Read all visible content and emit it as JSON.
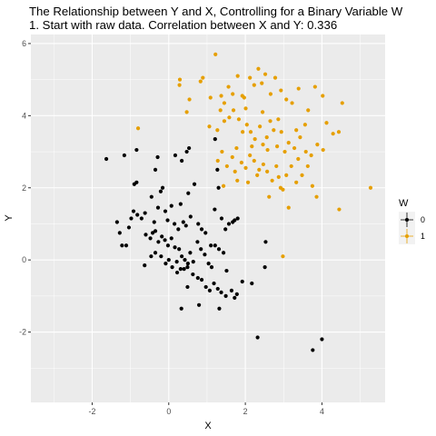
{
  "chart_data": {
    "type": "scatter",
    "title": "The Relationship between Y and X, Controlling for a Binary Variable W",
    "subtitle": "1. Start with raw data. Correlation between X and Y: 0.336",
    "xlabel": "X",
    "ylabel": "Y",
    "xlim": [
      -3.6,
      5.65
    ],
    "ylim": [
      -3.95,
      6.25
    ],
    "x_ticks": [
      -2,
      0,
      2,
      4
    ],
    "y_ticks": [
      -2,
      0,
      2,
      4,
      6
    ],
    "x_tick_labels": [
      "-2",
      "0",
      "2",
      "4"
    ],
    "y_tick_labels": [
      "-2",
      "0",
      "2",
      "4",
      "6"
    ],
    "grid": true,
    "legend": {
      "title": "W",
      "position": "right"
    },
    "series": [
      {
        "name": "0",
        "color": "#000000",
        "points": [
          [
            -1.63,
            2.8
          ],
          [
            -1.16,
            2.9
          ],
          [
            -0.84,
            3.05
          ],
          [
            -0.9,
            2.1
          ],
          [
            -0.84,
            2.15
          ],
          [
            -0.35,
            2.5
          ],
          [
            -0.29,
            2.85
          ],
          [
            0.17,
            2.9
          ],
          [
            0.34,
            2.75
          ],
          [
            0.47,
            3.0
          ],
          [
            0.53,
            3.1
          ],
          [
            1.21,
            3.35
          ],
          [
            1.27,
            2.5
          ],
          [
            1.3,
            2.0
          ],
          [
            -1.35,
            1.05
          ],
          [
            -1.28,
            0.75
          ],
          [
            -1.22,
            0.4
          ],
          [
            -1.11,
            0.4
          ],
          [
            -1.04,
            0.9
          ],
          [
            -0.98,
            1.15
          ],
          [
            -0.92,
            1.35
          ],
          [
            -0.82,
            1.25
          ],
          [
            -0.71,
            1.15
          ],
          [
            -0.62,
            1.3
          ],
          [
            -0.45,
            1.75
          ],
          [
            -0.38,
            1.05
          ],
          [
            -0.28,
            1.45
          ],
          [
            -0.21,
            1.9
          ],
          [
            -0.16,
            2.0
          ],
          [
            -0.09,
            1.35
          ],
          [
            -0.03,
            1.1
          ],
          [
            0.07,
            1.5
          ],
          [
            0.15,
            1.0
          ],
          [
            0.25,
            0.85
          ],
          [
            0.31,
            1.55
          ],
          [
            0.38,
            1.05
          ],
          [
            0.45,
            0.95
          ],
          [
            0.51,
            1.85
          ],
          [
            0.57,
            1.2
          ],
          [
            0.67,
            2.1
          ],
          [
            0.77,
            1.0
          ],
          [
            0.86,
            0.85
          ],
          [
            0.96,
            0.75
          ],
          [
            1.1,
            0.4
          ],
          [
            1.2,
            1.4
          ],
          [
            1.38,
            1.15
          ],
          [
            1.48,
            0.85
          ],
          [
            1.57,
            1.0
          ],
          [
            1.67,
            1.05
          ],
          [
            1.72,
            1.1
          ],
          [
            1.8,
            1.15
          ],
          [
            -0.6,
            0.7
          ],
          [
            -0.48,
            0.6
          ],
          [
            -0.42,
            0.75
          ],
          [
            -0.35,
            0.8
          ],
          [
            -0.27,
            0.5
          ],
          [
            -0.18,
            0.65
          ],
          [
            -0.1,
            0.55
          ],
          [
            -0.02,
            0.4
          ],
          [
            0.07,
            0.6
          ],
          [
            0.16,
            0.35
          ],
          [
            0.27,
            0.3
          ],
          [
            0.34,
            0.1
          ],
          [
            0.42,
            0.0
          ],
          [
            0.5,
            -0.1
          ],
          [
            0.56,
            0.2
          ],
          [
            0.64,
            -0.05
          ],
          [
            0.75,
            0.5
          ],
          [
            0.84,
            0.3
          ],
          [
            0.94,
            0.15
          ],
          [
            1.04,
            -0.1
          ],
          [
            1.12,
            -0.2
          ],
          [
            1.21,
            0.4
          ],
          [
            1.31,
            0.3
          ],
          [
            1.43,
            0.2
          ],
          [
            1.51,
            -0.3
          ],
          [
            -0.63,
            -0.15
          ],
          [
            -0.46,
            0.1
          ],
          [
            -0.35,
            0.2
          ],
          [
            -0.2,
            0.1
          ],
          [
            -0.08,
            -0.1
          ],
          [
            0.0,
            0.0
          ],
          [
            0.09,
            -0.2
          ],
          [
            0.21,
            -0.05
          ],
          [
            0.31,
            -0.25
          ],
          [
            0.4,
            -0.25
          ],
          [
            0.49,
            -0.2
          ],
          [
            0.63,
            -0.4
          ],
          [
            0.76,
            -0.5
          ],
          [
            0.86,
            -0.55
          ],
          [
            0.97,
            -0.75
          ],
          [
            1.07,
            -0.85
          ],
          [
            1.18,
            -0.65
          ],
          [
            1.28,
            -0.8
          ],
          [
            1.37,
            -0.9
          ],
          [
            1.49,
            -1.0
          ],
          [
            1.64,
            -0.85
          ],
          [
            1.78,
            -0.95
          ],
          [
            1.92,
            -0.6
          ],
          [
            2.17,
            -0.65
          ],
          [
            2.51,
            -0.2
          ],
          [
            2.53,
            0.5
          ],
          [
            0.49,
            -0.75
          ],
          [
            0.22,
            -0.35
          ],
          [
            0.33,
            -1.35
          ],
          [
            0.79,
            -1.25
          ],
          [
            1.32,
            -1.35
          ],
          [
            1.72,
            -1.05
          ],
          [
            2.32,
            -2.15
          ],
          [
            3.76,
            -2.5
          ],
          [
            4.0,
            -2.2
          ]
        ]
      },
      {
        "name": "1",
        "color": "#e69f00",
        "points": [
          [
            -0.8,
            3.65
          ],
          [
            0.28,
            4.85
          ],
          [
            0.29,
            5.0
          ],
          [
            0.54,
            4.45
          ],
          [
            0.47,
            4.1
          ],
          [
            0.83,
            4.95
          ],
          [
            0.89,
            5.05
          ],
          [
            1.09,
            4.5
          ],
          [
            1.22,
            5.7
          ],
          [
            1.37,
            4.55
          ],
          [
            1.45,
            4.35
          ],
          [
            1.56,
            4.8
          ],
          [
            1.67,
            4.6
          ],
          [
            1.8,
            5.1
          ],
          [
            1.92,
            4.55
          ],
          [
            2.01,
            4.2
          ],
          [
            2.12,
            5.05
          ],
          [
            2.23,
            4.85
          ],
          [
            2.34,
            5.3
          ],
          [
            2.43,
            4.9
          ],
          [
            2.52,
            5.15
          ],
          [
            2.66,
            4.6
          ],
          [
            2.78,
            5.05
          ],
          [
            2.93,
            4.7
          ],
          [
            3.07,
            4.45
          ],
          [
            3.22,
            4.35
          ],
          [
            3.39,
            4.75
          ],
          [
            3.64,
            4.15
          ],
          [
            3.82,
            4.8
          ],
          [
            4.02,
            4.55
          ],
          [
            4.12,
            3.8
          ],
          [
            4.29,
            3.5
          ],
          [
            4.44,
            3.55
          ],
          [
            4.53,
            4.35
          ],
          [
            1.06,
            3.7
          ],
          [
            1.27,
            3.6
          ],
          [
            1.35,
            4.15
          ],
          [
            1.45,
            3.85
          ],
          [
            1.58,
            3.95
          ],
          [
            1.69,
            4.15
          ],
          [
            1.83,
            3.9
          ],
          [
            1.93,
            3.55
          ],
          [
            2.04,
            3.75
          ],
          [
            2.14,
            3.55
          ],
          [
            2.25,
            3.35
          ],
          [
            2.38,
            3.7
          ],
          [
            2.46,
            3.2
          ],
          [
            2.56,
            3.4
          ],
          [
            2.65,
            3.85
          ],
          [
            2.74,
            3.6
          ],
          [
            2.83,
            3.15
          ],
          [
            2.94,
            3.55
          ],
          [
            3.03,
            3.0
          ],
          [
            3.13,
            3.25
          ],
          [
            3.28,
            3.1
          ],
          [
            3.43,
            3.4
          ],
          [
            3.58,
            3.0
          ],
          [
            3.72,
            2.9
          ],
          [
            3.88,
            3.2
          ],
          [
            4.03,
            3.05
          ],
          [
            1.28,
            2.75
          ],
          [
            1.39,
            3.0
          ],
          [
            1.52,
            2.6
          ],
          [
            1.66,
            2.85
          ],
          [
            1.77,
            3.1
          ],
          [
            1.9,
            2.7
          ],
          [
            2.01,
            2.55
          ],
          [
            2.12,
            2.9
          ],
          [
            2.23,
            2.75
          ],
          [
            2.36,
            2.5
          ],
          [
            2.47,
            2.65
          ],
          [
            2.57,
            2.45
          ],
          [
            2.7,
            2.2
          ],
          [
            2.81,
            2.6
          ],
          [
            2.92,
            2.0
          ],
          [
            3.07,
            2.35
          ],
          [
            3.2,
            2.6
          ],
          [
            3.33,
            2.15
          ],
          [
            3.48,
            2.35
          ],
          [
            3.63,
            2.6
          ],
          [
            3.75,
            2.05
          ],
          [
            1.43,
            2.05
          ],
          [
            1.79,
            2.2
          ],
          [
            2.07,
            2.15
          ],
          [
            2.62,
            1.75
          ],
          [
            2.98,
            1.95
          ],
          [
            3.13,
            1.45
          ],
          [
            3.86,
            1.75
          ],
          [
            2.98,
            0.1
          ],
          [
            4.45,
            1.4
          ],
          [
            5.27,
            2.0
          ],
          [
            1.97,
            4.5
          ],
          [
            2.45,
            4.1
          ],
          [
            2.86,
            3.9
          ],
          [
            3.33,
            3.6
          ],
          [
            3.56,
            3.75
          ],
          [
            2.17,
            3.15
          ],
          [
            2.58,
            3.05
          ],
          [
            1.73,
            2.45
          ],
          [
            2.31,
            2.35
          ],
          [
            2.87,
            2.3
          ],
          [
            3.38,
            2.8
          ]
        ]
      }
    ]
  }
}
